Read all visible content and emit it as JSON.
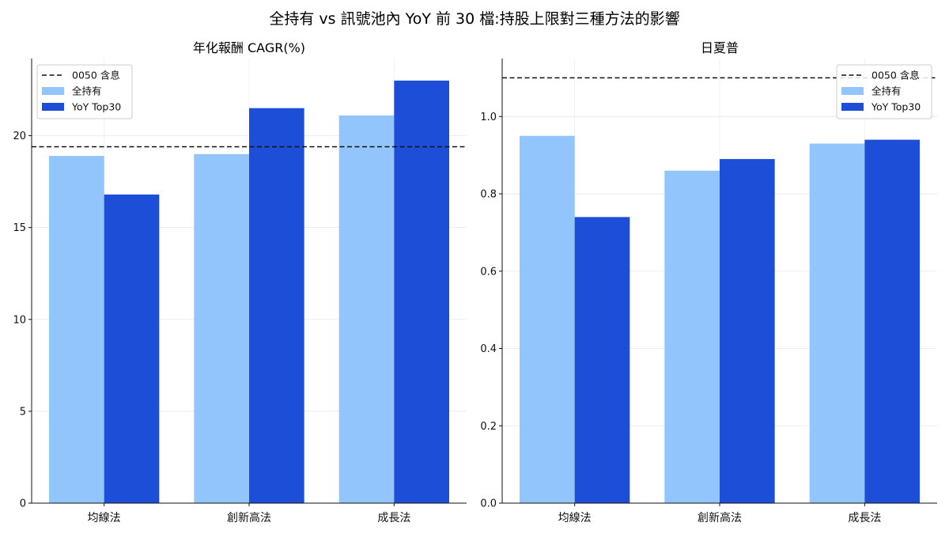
{
  "suptitle": "全持有 vs 訊號池內 YoY 前 30 檔:持股上限對三種方法的影響",
  "chart_data": [
    {
      "type": "bar",
      "title": "年化報酬 CAGR(%)",
      "categories": [
        "均線法",
        "創新高法",
        "成長法"
      ],
      "series": [
        {
          "name": "全持有",
          "values": [
            18.9,
            19.0,
            21.1
          ],
          "color": "#93c5fd"
        },
        {
          "name": "YoY Top30",
          "values": [
            16.8,
            21.5,
            23.0
          ],
          "color": "#1d4ed8"
        }
      ],
      "reference_line": {
        "name": "0050 含息",
        "value": 19.4,
        "style": "dashed",
        "color": "#111111"
      },
      "ylim": [
        0,
        24.2
      ],
      "yticks": [
        0,
        5,
        10,
        15,
        20
      ],
      "ytick_labels": [
        "0",
        "5",
        "10",
        "15",
        "20"
      ],
      "grid": true,
      "legend_position": "top-left"
    },
    {
      "type": "bar",
      "title": "日夏普",
      "categories": [
        "均線法",
        "創新高法",
        "成長法"
      ],
      "series": [
        {
          "name": "全持有",
          "values": [
            0.95,
            0.86,
            0.93
          ],
          "color": "#93c5fd"
        },
        {
          "name": "YoY Top30",
          "values": [
            0.74,
            0.89,
            0.94
          ],
          "color": "#1d4ed8"
        }
      ],
      "reference_line": {
        "name": "0050 含息",
        "value": 1.1,
        "style": "dashed",
        "color": "#111111"
      },
      "ylim": [
        0,
        1.15
      ],
      "yticks": [
        0,
        0.2,
        0.4,
        0.6,
        0.8,
        1.0
      ],
      "ytick_labels": [
        "0.0",
        "0.2",
        "0.4",
        "0.6",
        "0.8",
        "1.0"
      ],
      "grid": true,
      "legend_position": "top-right"
    }
  ]
}
